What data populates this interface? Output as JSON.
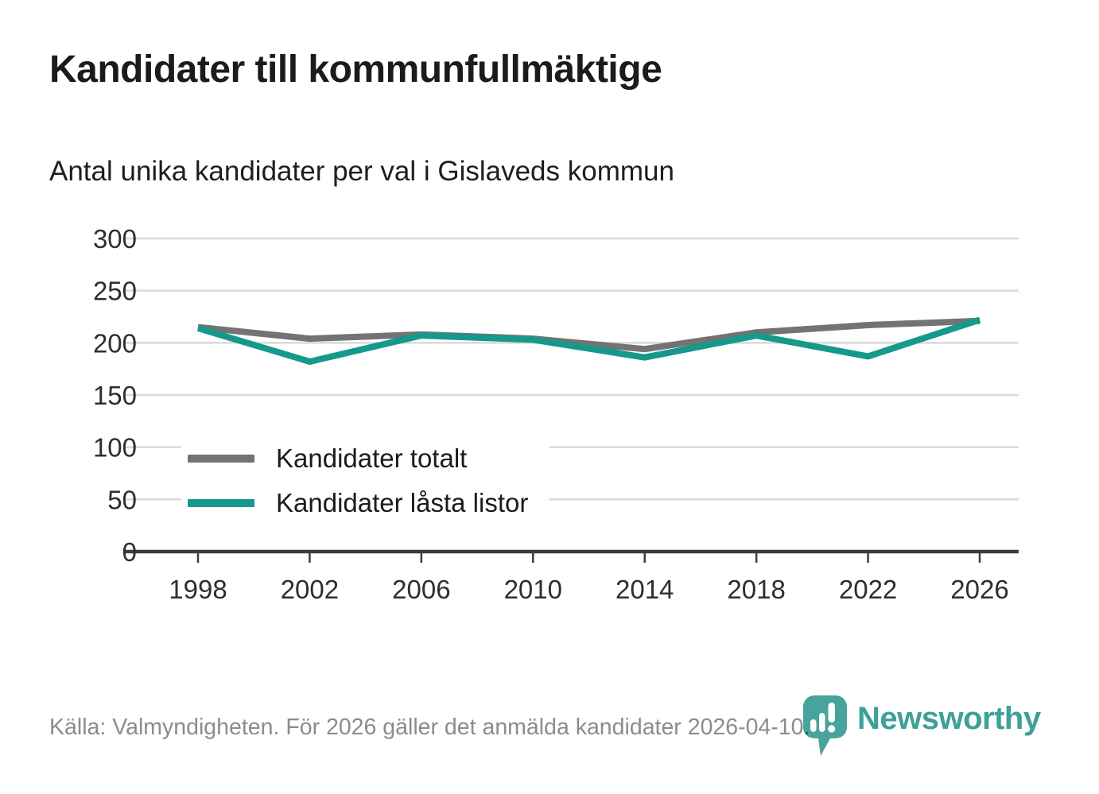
{
  "header": {
    "title": "Kandidater till kommunfullmäktige",
    "subtitle": "Antal unika kandidater per val i Gislaveds kommun"
  },
  "chart_data": {
    "type": "line",
    "categories": [
      "1998",
      "2002",
      "2006",
      "2010",
      "2014",
      "2018",
      "2022",
      "2026"
    ],
    "series": [
      {
        "name": "Kandidater totalt",
        "color": "#737373",
        "values": [
          215,
          204,
          208,
          204,
          194,
          210,
          217,
          221
        ]
      },
      {
        "name": "Kandidater låsta listor",
        "color": "#14998c",
        "values": [
          214,
          182,
          207,
          203,
          186,
          207,
          187,
          222
        ]
      }
    ],
    "title": "Kandidater till kommunfullmäktige",
    "subtitle": "Antal unika kandidater per val i Gislaveds kommun",
    "xlabel": "",
    "ylabel": "",
    "ylim": [
      0,
      300
    ],
    "yticks": [
      0,
      50,
      100,
      150,
      200,
      250,
      300
    ],
    "grid": true,
    "legend_position": "inside-left"
  },
  "colors": {
    "grid": "#d9d9d9",
    "axis": "#3d3d3d",
    "tick_text": "#2e2e2e",
    "footer_text": "#8c8c8c",
    "logo_teal": "#3da099"
  },
  "footer": {
    "source_text": "Källa: Valmyndigheten. För 2026 gäller det anmälda kandidater 2026-04-10."
  },
  "logo": {
    "brand": "Newsworthy",
    "icon": "bar-chart-pin-icon"
  }
}
